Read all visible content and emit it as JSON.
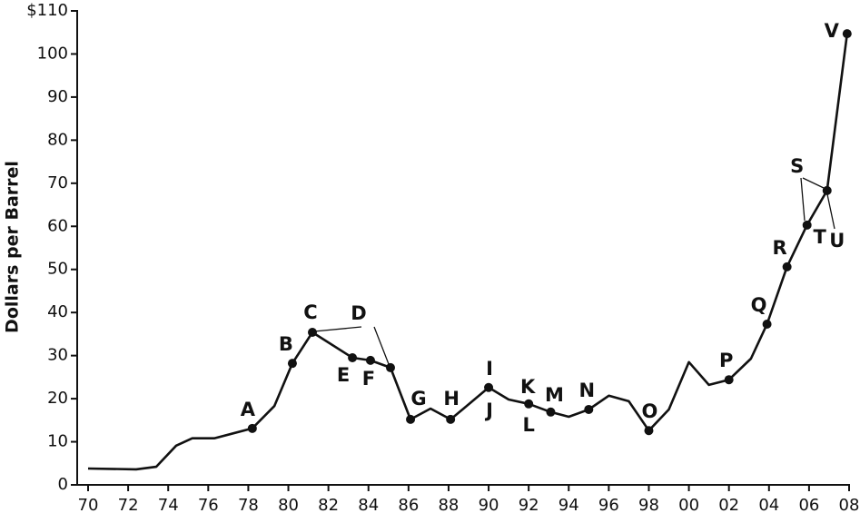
{
  "chart_data": {
    "type": "line",
    "ylabel": "Dollars per Barrel",
    "x": [
      1970,
      1972.4,
      1973.4,
      1974.4,
      1975.2,
      1976.3,
      1978.2,
      1979.3,
      1980.2,
      1981.2,
      1983.2,
      1984.1,
      1985.1,
      1986.1,
      1987.1,
      1988.1,
      1990.0,
      1991.0,
      1992.0,
      1993.1,
      1994.0,
      1995.0,
      1996.0,
      1997.0,
      1998.0,
      1999.0,
      2000.0,
      2001.0,
      2002.0,
      2003.1,
      2003.9,
      2004.9,
      2005.9,
      2006.9,
      2007.9
    ],
    "values": [
      3.8,
      3.6,
      4.2,
      9.1,
      10.8,
      10.8,
      13.1,
      18.3,
      28.2,
      35.4,
      29.5,
      28.9,
      27.2,
      15.2,
      17.7,
      15.2,
      22.6,
      19.8,
      18.8,
      16.9,
      15.8,
      17.5,
      20.7,
      19.4,
      12.6,
      17.5,
      28.5,
      23.2,
      24.4,
      29.3,
      37.3,
      50.6,
      60.3,
      68.3,
      104.7
    ],
    "point_labels": [
      null,
      null,
      null,
      null,
      null,
      null,
      [
        "A"
      ],
      null,
      [
        "B"
      ],
      [
        "C"
      ],
      [
        "E"
      ],
      [
        "F"
      ],
      [
        "D"
      ],
      [
        "G"
      ],
      null,
      [
        "H"
      ],
      [
        "I",
        "J"
      ],
      null,
      [
        "K",
        "L"
      ],
      [
        "M"
      ],
      null,
      [
        "N"
      ],
      null,
      null,
      [
        "O"
      ],
      null,
      null,
      null,
      [
        "P"
      ],
      null,
      [
        "Q"
      ],
      [
        "R"
      ],
      [
        "S",
        "T"
      ],
      [
        "U"
      ],
      [
        "V"
      ]
    ],
    "color": "#111111",
    "xlim": [
      1970,
      2008
    ],
    "xticks": [
      {
        "value": 1970,
        "label": "70"
      },
      {
        "value": 1972,
        "label": "72"
      },
      {
        "value": 1974,
        "label": "74"
      },
      {
        "value": 1976,
        "label": "76"
      },
      {
        "value": 1978,
        "label": "78"
      },
      {
        "value": 1980,
        "label": "80"
      },
      {
        "value": 1982,
        "label": "82"
      },
      {
        "value": 1984,
        "label": "84"
      },
      {
        "value": 1986,
        "label": "86"
      },
      {
        "value": 1988,
        "label": "88"
      },
      {
        "value": 1990,
        "label": "90"
      },
      {
        "value": 1992,
        "label": "92"
      },
      {
        "value": 1994,
        "label": "94"
      },
      {
        "value": 1996,
        "label": "96"
      },
      {
        "value": 1998,
        "label": "98"
      },
      {
        "value": 2000,
        "label": "00"
      },
      {
        "value": 2002,
        "label": "02"
      },
      {
        "value": 2004,
        "label": "04"
      },
      {
        "value": 2006,
        "label": "06"
      },
      {
        "value": 2008,
        "label": "08"
      }
    ],
    "ylim": [
      0,
      110
    ],
    "yticks": [
      0,
      10,
      20,
      30,
      40,
      50,
      60,
      70,
      80,
      90,
      100,
      {
        "value": 110,
        "label": "$110"
      }
    ],
    "grid": false
  }
}
